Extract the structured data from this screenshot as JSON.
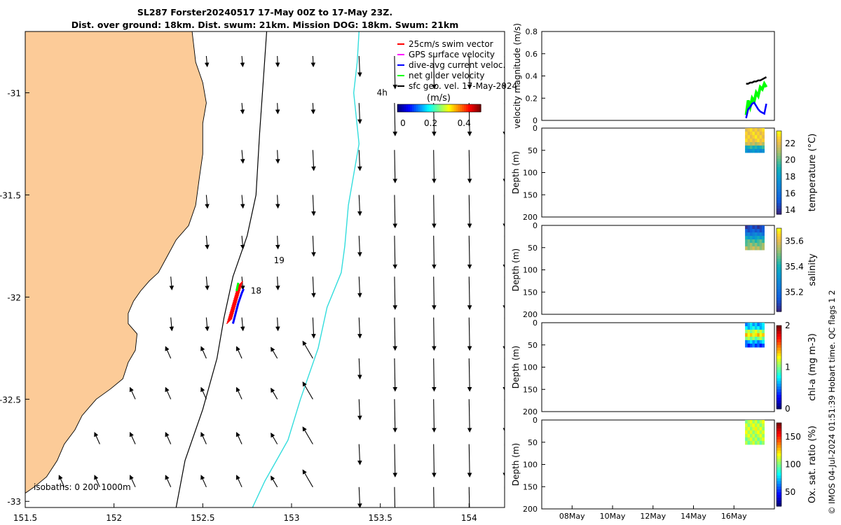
{
  "header": {
    "title_line1": "SL287 Forster20240517 17-May 00Z to 17-May 23Z.",
    "title_line2": "Dist. over ground: 18km. Dist. swum: 21km. Mission DOG: 18km. Swum: 21km"
  },
  "footer": {
    "credit": "© IMOS 04-Jul-2024 01:51:39 Hobart time. QC flags 1 2"
  },
  "colors": {
    "land": "#FCCB98",
    "coast": "#000000",
    "isobath_200": "#000000",
    "isobath_1000": "#33DDDD",
    "swim_vector": "#FF0000",
    "gps_velocity": "#FF00FF",
    "dive_avg": "#0000FF",
    "net_glider": "#00FF00",
    "sfc_geo": "#000000"
  },
  "chart_data": [
    {
      "type": "map",
      "xlim": [
        151.5,
        154.2
      ],
      "ylim": [
        -33.03,
        -30.7
      ],
      "x_ticks": [
        "151.5",
        "152",
        "152.5",
        "153",
        "153.5",
        "154"
      ],
      "y_ticks": [
        "-31",
        "-31.5",
        "-32",
        "-32.5",
        "-33"
      ],
      "legend": {
        "position": "top-right",
        "entries": [
          "25cm/s swim vector",
          "GPS surface velocity",
          "dive-avg current veloc.",
          "net glider velocity",
          "sfc geo. vel. 17-May-2024"
        ]
      },
      "colorbar": {
        "label": "(m/s)",
        "ticks": [
          "0",
          "0.2",
          "0.4"
        ],
        "range": [
          0,
          0.5
        ]
      },
      "annotations": [
        {
          "text": "4h",
          "x": 153.48,
          "y": -31.0
        },
        {
          "text": "19",
          "x": 152.9,
          "y": -31.82
        },
        {
          "text": "18",
          "x": 152.77,
          "y": -31.97
        }
      ],
      "isobath_label": "isobaths: 0   200  1000m"
    },
    {
      "type": "line",
      "ylabel": "velocity magnitude (m/s)",
      "ylim": [
        0,
        0.8
      ],
      "y_ticks": [
        "0",
        "0.2",
        "0.4",
        "0.6",
        "0.8"
      ],
      "series": [
        {
          "name": "net glider velocity",
          "color": "#00FF00",
          "x": [
            16.6,
            16.7,
            16.8,
            16.9,
            17.0,
            17.1,
            17.2,
            17.3,
            17.4,
            17.5,
            17.6
          ],
          "values": [
            0.05,
            0.18,
            0.12,
            0.2,
            0.17,
            0.25,
            0.22,
            0.3,
            0.28,
            0.33,
            0.3
          ]
        },
        {
          "name": "dive-avg current veloc.",
          "color": "#0000FF",
          "x": [
            16.6,
            16.7,
            16.8,
            16.9,
            17.0,
            17.1,
            17.2,
            17.3,
            17.4,
            17.5,
            17.6
          ],
          "values": [
            0.02,
            0.1,
            0.12,
            0.15,
            0.16,
            0.13,
            0.1,
            0.08,
            0.07,
            0.06,
            0.15
          ]
        },
        {
          "name": "sfc geo. vel.",
          "color": "#000000",
          "x": [
            16.6,
            16.7,
            16.8,
            16.9,
            17.0,
            17.1,
            17.2,
            17.3,
            17.4,
            17.5,
            17.6
          ],
          "values": [
            0.33,
            0.33,
            0.34,
            0.34,
            0.35,
            0.35,
            0.36,
            0.36,
            0.37,
            0.38,
            0.39
          ]
        }
      ]
    },
    {
      "type": "heatmap",
      "ylabel": "Depth (m)",
      "clabel": "temperature (°C)",
      "ylim": [
        0,
        200
      ],
      "y_ticks": [
        "0",
        "50",
        "100",
        "150",
        "200"
      ],
      "cticks": [
        "14",
        "16",
        "18",
        "20",
        "22"
      ],
      "crange": [
        13.5,
        23.5
      ],
      "sample_profile": [
        22.5,
        22.6,
        22.7,
        22.5,
        21.5,
        19.0,
        17.5
      ],
      "data_depth_max": 55
    },
    {
      "type": "heatmap",
      "ylabel": "Depth (m)",
      "clabel": "salinity",
      "ylim": [
        0,
        200
      ],
      "y_ticks": [
        "0",
        "50",
        "100",
        "150",
        "200"
      ],
      "cticks": [
        "35.2",
        "35.4",
        "35.6"
      ],
      "crange": [
        35.05,
        35.7
      ],
      "sample_profile": [
        35.1,
        35.15,
        35.25,
        35.35,
        35.45,
        35.5,
        35.55
      ],
      "data_depth_max": 55
    },
    {
      "type": "heatmap",
      "ylabel": "Depth (m)",
      "clabel": "chl-a (mg m-3)",
      "ylim": [
        0,
        200
      ],
      "y_ticks": [
        "0",
        "50",
        "100",
        "150",
        "200"
      ],
      "cticks": [
        "0",
        "1",
        "2"
      ],
      "crange": [
        0,
        2
      ],
      "sample_profile": [
        0.6,
        0.7,
        1.1,
        1.3,
        1.0,
        0.6,
        0.4
      ],
      "data_depth_max": 55
    },
    {
      "type": "heatmap",
      "ylabel": "Depth (m)",
      "clabel": "Ox. sat. ratio (%)",
      "ylim": [
        0,
        200
      ],
      "y_ticks": [
        "0",
        "50",
        "100",
        "150",
        "200"
      ],
      "cticks": [
        "50",
        "100",
        "150"
      ],
      "crange": [
        25,
        175
      ],
      "sample_profile": [
        108,
        110,
        112,
        110,
        108,
        106,
        104
      ],
      "data_depth_max": 55,
      "x_ticks": [
        "08May",
        "10May",
        "12May",
        "14May",
        "16May"
      ],
      "x_tick_days": [
        8,
        10,
        12,
        14,
        16
      ],
      "xlim_days": [
        6.5,
        18.0
      ]
    }
  ]
}
